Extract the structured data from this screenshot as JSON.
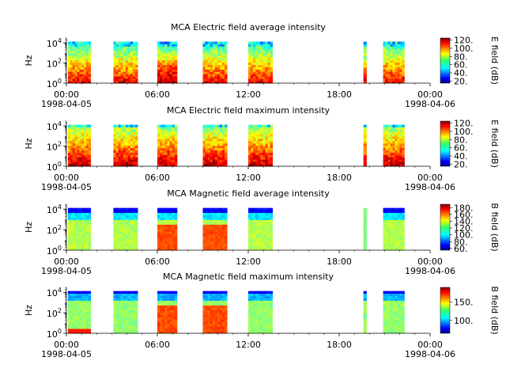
{
  "chart_data": [
    {
      "type": "heatmap",
      "title": "MCA  Electric field average intensity",
      "ylabel": "Hz",
      "y_ticks": [
        "10",
        "10",
        "10"
      ],
      "y_tick_exponents": [
        "0",
        "2",
        "4"
      ],
      "ylim": [
        1,
        30000
      ],
      "y_scale": "log",
      "x_tick_labels": [
        "00:00",
        "06:00",
        "12:00",
        "18:00",
        "00:00"
      ],
      "x_date_labels": [
        "1998-04-05",
        "1998-04-06"
      ],
      "xlim_hours": [
        0,
        24
      ],
      "colorbar_label": "E field (dB)",
      "colorbar_ticks": [
        "20.",
        "40.",
        "60.",
        "80.",
        "100.",
        "120."
      ],
      "colorbar_range": [
        15,
        125
      ],
      "colormap": "jet",
      "data_blocks_hours": [
        [
          0.1,
          1.6
        ],
        [
          3.1,
          4.7
        ],
        [
          6.0,
          7.3
        ],
        [
          9.0,
          10.6
        ],
        [
          12.0,
          13.6
        ],
        [
          19.6,
          19.8
        ],
        [
          20.9,
          22.3
        ]
      ],
      "intensity_profile": "electric-avg"
    },
    {
      "type": "heatmap",
      "title": "MCA  Electric field maximum intensity",
      "ylabel": "Hz",
      "y_ticks": [
        "10",
        "10",
        "10"
      ],
      "y_tick_exponents": [
        "0",
        "2",
        "4"
      ],
      "ylim": [
        1,
        30000
      ],
      "y_scale": "log",
      "x_tick_labels": [
        "00:00",
        "06:00",
        "12:00",
        "18:00",
        "00:00"
      ],
      "x_date_labels": [
        "1998-04-05",
        "1998-04-06"
      ],
      "xlim_hours": [
        0,
        24
      ],
      "colorbar_label": "E field (dB)",
      "colorbar_ticks": [
        "20.",
        "40.",
        "60.",
        "80.",
        "100.",
        "120."
      ],
      "colorbar_range": [
        15,
        125
      ],
      "colormap": "jet",
      "data_blocks_hours": [
        [
          0.1,
          1.6
        ],
        [
          3.1,
          4.7
        ],
        [
          6.0,
          7.3
        ],
        [
          9.0,
          10.6
        ],
        [
          12.0,
          13.6
        ],
        [
          19.6,
          19.8
        ],
        [
          20.9,
          22.3
        ]
      ],
      "intensity_profile": "electric-max"
    },
    {
      "type": "heatmap",
      "title": "MCA  Magnetic field average intensity",
      "ylabel": "Hz",
      "y_ticks": [
        "10",
        "10",
        "10"
      ],
      "y_tick_exponents": [
        "0",
        "2",
        "4"
      ],
      "ylim": [
        1,
        30000
      ],
      "y_scale": "log",
      "x_tick_labels": [
        "00:00",
        "06:00",
        "12:00",
        "18:00",
        "00:00"
      ],
      "x_date_labels": [
        "1998-04-05",
        "1998-04-06"
      ],
      "xlim_hours": [
        0,
        24
      ],
      "colorbar_label": "B field (dB)",
      "colorbar_ticks": [
        "60.",
        "80.",
        "100.",
        "120.",
        "140.",
        "160.",
        "180."
      ],
      "colorbar_range": [
        55,
        190
      ],
      "colormap": "jet",
      "data_blocks_hours": [
        [
          0.1,
          1.6
        ],
        [
          3.1,
          4.7
        ],
        [
          6.0,
          7.3
        ],
        [
          9.0,
          10.6
        ],
        [
          12.0,
          13.6
        ],
        [
          19.6,
          19.8
        ],
        [
          20.9,
          22.3
        ]
      ],
      "intensity_profile": "magnetic-avg"
    },
    {
      "type": "heatmap",
      "title": "MCA  Magnetic field maximum intensity",
      "ylabel": "Hz",
      "y_ticks": [
        "10",
        "10",
        "10"
      ],
      "y_tick_exponents": [
        "0",
        "2",
        "4"
      ],
      "ylim": [
        1,
        30000
      ],
      "y_scale": "log",
      "x_tick_labels": [
        "00:00",
        "06:00",
        "12:00",
        "18:00",
        "00:00"
      ],
      "x_date_labels": [
        "1998-04-05",
        "1998-04-06"
      ],
      "xlim_hours": [
        0,
        24
      ],
      "colorbar_label": "B field (dB)",
      "colorbar_ticks": [
        "100.",
        "150."
      ],
      "colorbar_range": [
        65,
        190
      ],
      "colormap": "jet",
      "data_blocks_hours": [
        [
          0.1,
          1.6
        ],
        [
          3.1,
          4.7
        ],
        [
          6.0,
          7.3
        ],
        [
          9.0,
          10.6
        ],
        [
          12.0,
          13.6
        ],
        [
          19.6,
          19.8
        ],
        [
          20.9,
          22.3
        ]
      ],
      "intensity_profile": "magnetic-max"
    }
  ]
}
